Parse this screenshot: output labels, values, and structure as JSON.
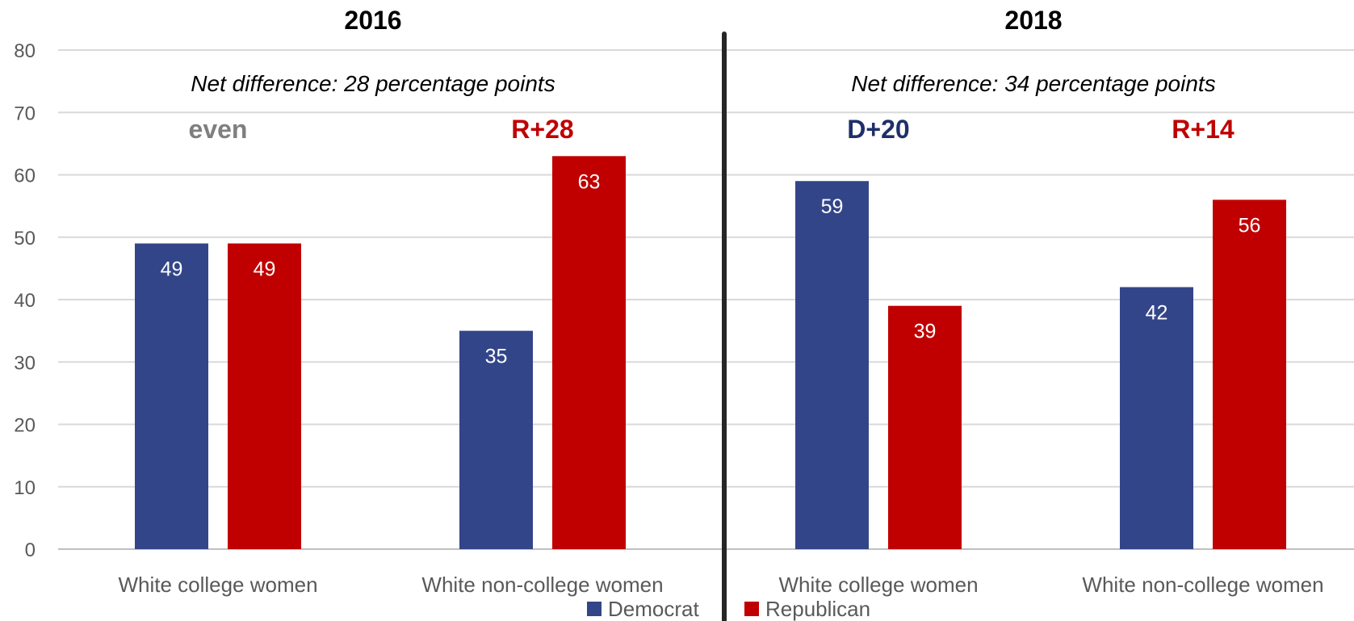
{
  "chart_data": {
    "type": "bar",
    "ylim": [
      0,
      80
    ],
    "yticks": [
      0,
      10,
      20,
      30,
      40,
      50,
      60,
      70,
      80
    ],
    "grid": true,
    "legend_position": "bottom-center",
    "series_colors": {
      "Democrat": "#334589",
      "Republican": "#C00000"
    },
    "legend": [
      "Democrat",
      "Republican"
    ],
    "panels": [
      {
        "title": "2016",
        "note": "Net difference: 28 percentage points",
        "groups": [
          {
            "category": "White college women",
            "margin_label": "even",
            "margin_color": "#7F7F7F",
            "values": {
              "Democrat": 49,
              "Republican": 49
            }
          },
          {
            "category": "White non-college women",
            "margin_label": "R+28",
            "margin_color": "#C00000",
            "values": {
              "Democrat": 35,
              "Republican": 63
            }
          }
        ]
      },
      {
        "title": "2018",
        "note": "Net difference: 34 percentage points",
        "groups": [
          {
            "category": "White college women",
            "margin_label": "D+20",
            "margin_color": "#1F2F6B",
            "values": {
              "Democrat": 59,
              "Republican": 39
            }
          },
          {
            "category": "White non-college women",
            "margin_label": "R+14",
            "margin_color": "#C00000",
            "values": {
              "Democrat": 42,
              "Republican": 56
            }
          }
        ]
      }
    ]
  }
}
